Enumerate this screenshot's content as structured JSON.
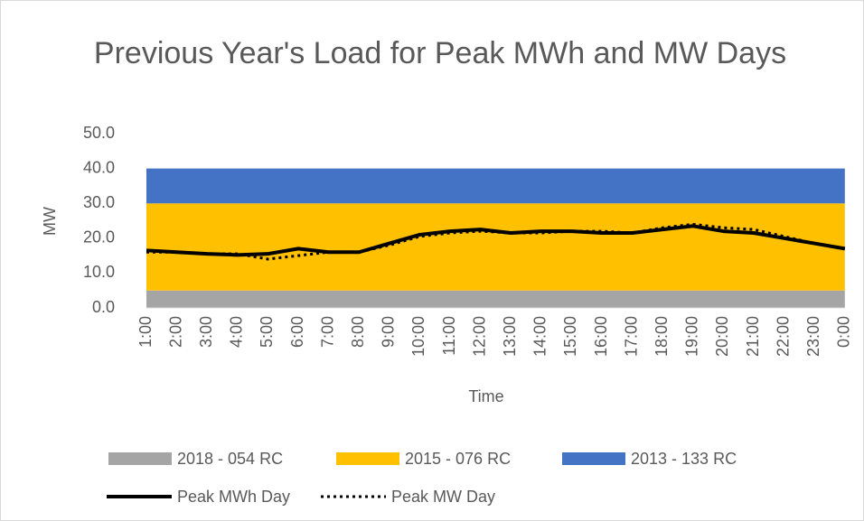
{
  "chart_data": {
    "type": "area-line",
    "title": "Previous Year's Load for Peak MWh and MW Days",
    "xlabel": "Time",
    "ylabel": "MW",
    "categories": [
      "1:00",
      "2:00",
      "3:00",
      "4:00",
      "5:00",
      "6:00",
      "7:00",
      "8:00",
      "9:00",
      "10:00",
      "11:00",
      "12:00",
      "13:00",
      "14:00",
      "15:00",
      "16:00",
      "17:00",
      "18:00",
      "19:00",
      "20:00",
      "21:00",
      "22:00",
      "23:00",
      "0:00"
    ],
    "ylim": [
      0,
      50
    ],
    "yticks": [
      {
        "value": 0,
        "label": "0.0"
      },
      {
        "value": 10,
        "label": "10.0"
      },
      {
        "value": 20,
        "label": "20.0"
      },
      {
        "value": 30,
        "label": "30.0"
      },
      {
        "value": 40,
        "label": "40.0"
      },
      {
        "value": 50,
        "label": "50.0"
      }
    ],
    "areas": [
      {
        "name": "2018 - 054 RC",
        "color": "#a5a5a5",
        "values": [
          5,
          5,
          5,
          5,
          5,
          5,
          5,
          5,
          5,
          5,
          5,
          5,
          5,
          5,
          5,
          5,
          5,
          5,
          5,
          5,
          5,
          5,
          5,
          5
        ]
      },
      {
        "name": "2015 - 076 RC",
        "color": "#ffc000",
        "values": [
          25,
          25,
          25,
          25,
          25,
          25,
          25,
          25,
          25,
          25,
          25,
          25,
          25,
          25,
          25,
          25,
          25,
          25,
          25,
          25,
          25,
          25,
          25,
          25
        ]
      },
      {
        "name": "2013 - 133 RC",
        "color": "#4472c4",
        "values": [
          10,
          10,
          10,
          10,
          10,
          10,
          10,
          10,
          10,
          10,
          10,
          10,
          10,
          10,
          10,
          10,
          10,
          10,
          10,
          10,
          10,
          10,
          10,
          10
        ]
      }
    ],
    "series": [
      {
        "name": "Peak MWh Day",
        "color": "#000000",
        "dash": "solid",
        "values": [
          16.5,
          16,
          15.5,
          15.2,
          15.5,
          17,
          16,
          16,
          18.5,
          21,
          22,
          22.5,
          21.5,
          22,
          22,
          21.5,
          21.5,
          22.5,
          23.5,
          22,
          21.5,
          20,
          18.5,
          17
        ]
      },
      {
        "name": "Peak MW Day",
        "color": "#000000",
        "dash": "dotted",
        "values": [
          16,
          16,
          15.5,
          15.5,
          14,
          15,
          16,
          16,
          18,
          20.5,
          21.5,
          22,
          21.5,
          21.5,
          22,
          22,
          21.5,
          23,
          24,
          23,
          22.5,
          20.5,
          18.5,
          17
        ]
      }
    ]
  }
}
